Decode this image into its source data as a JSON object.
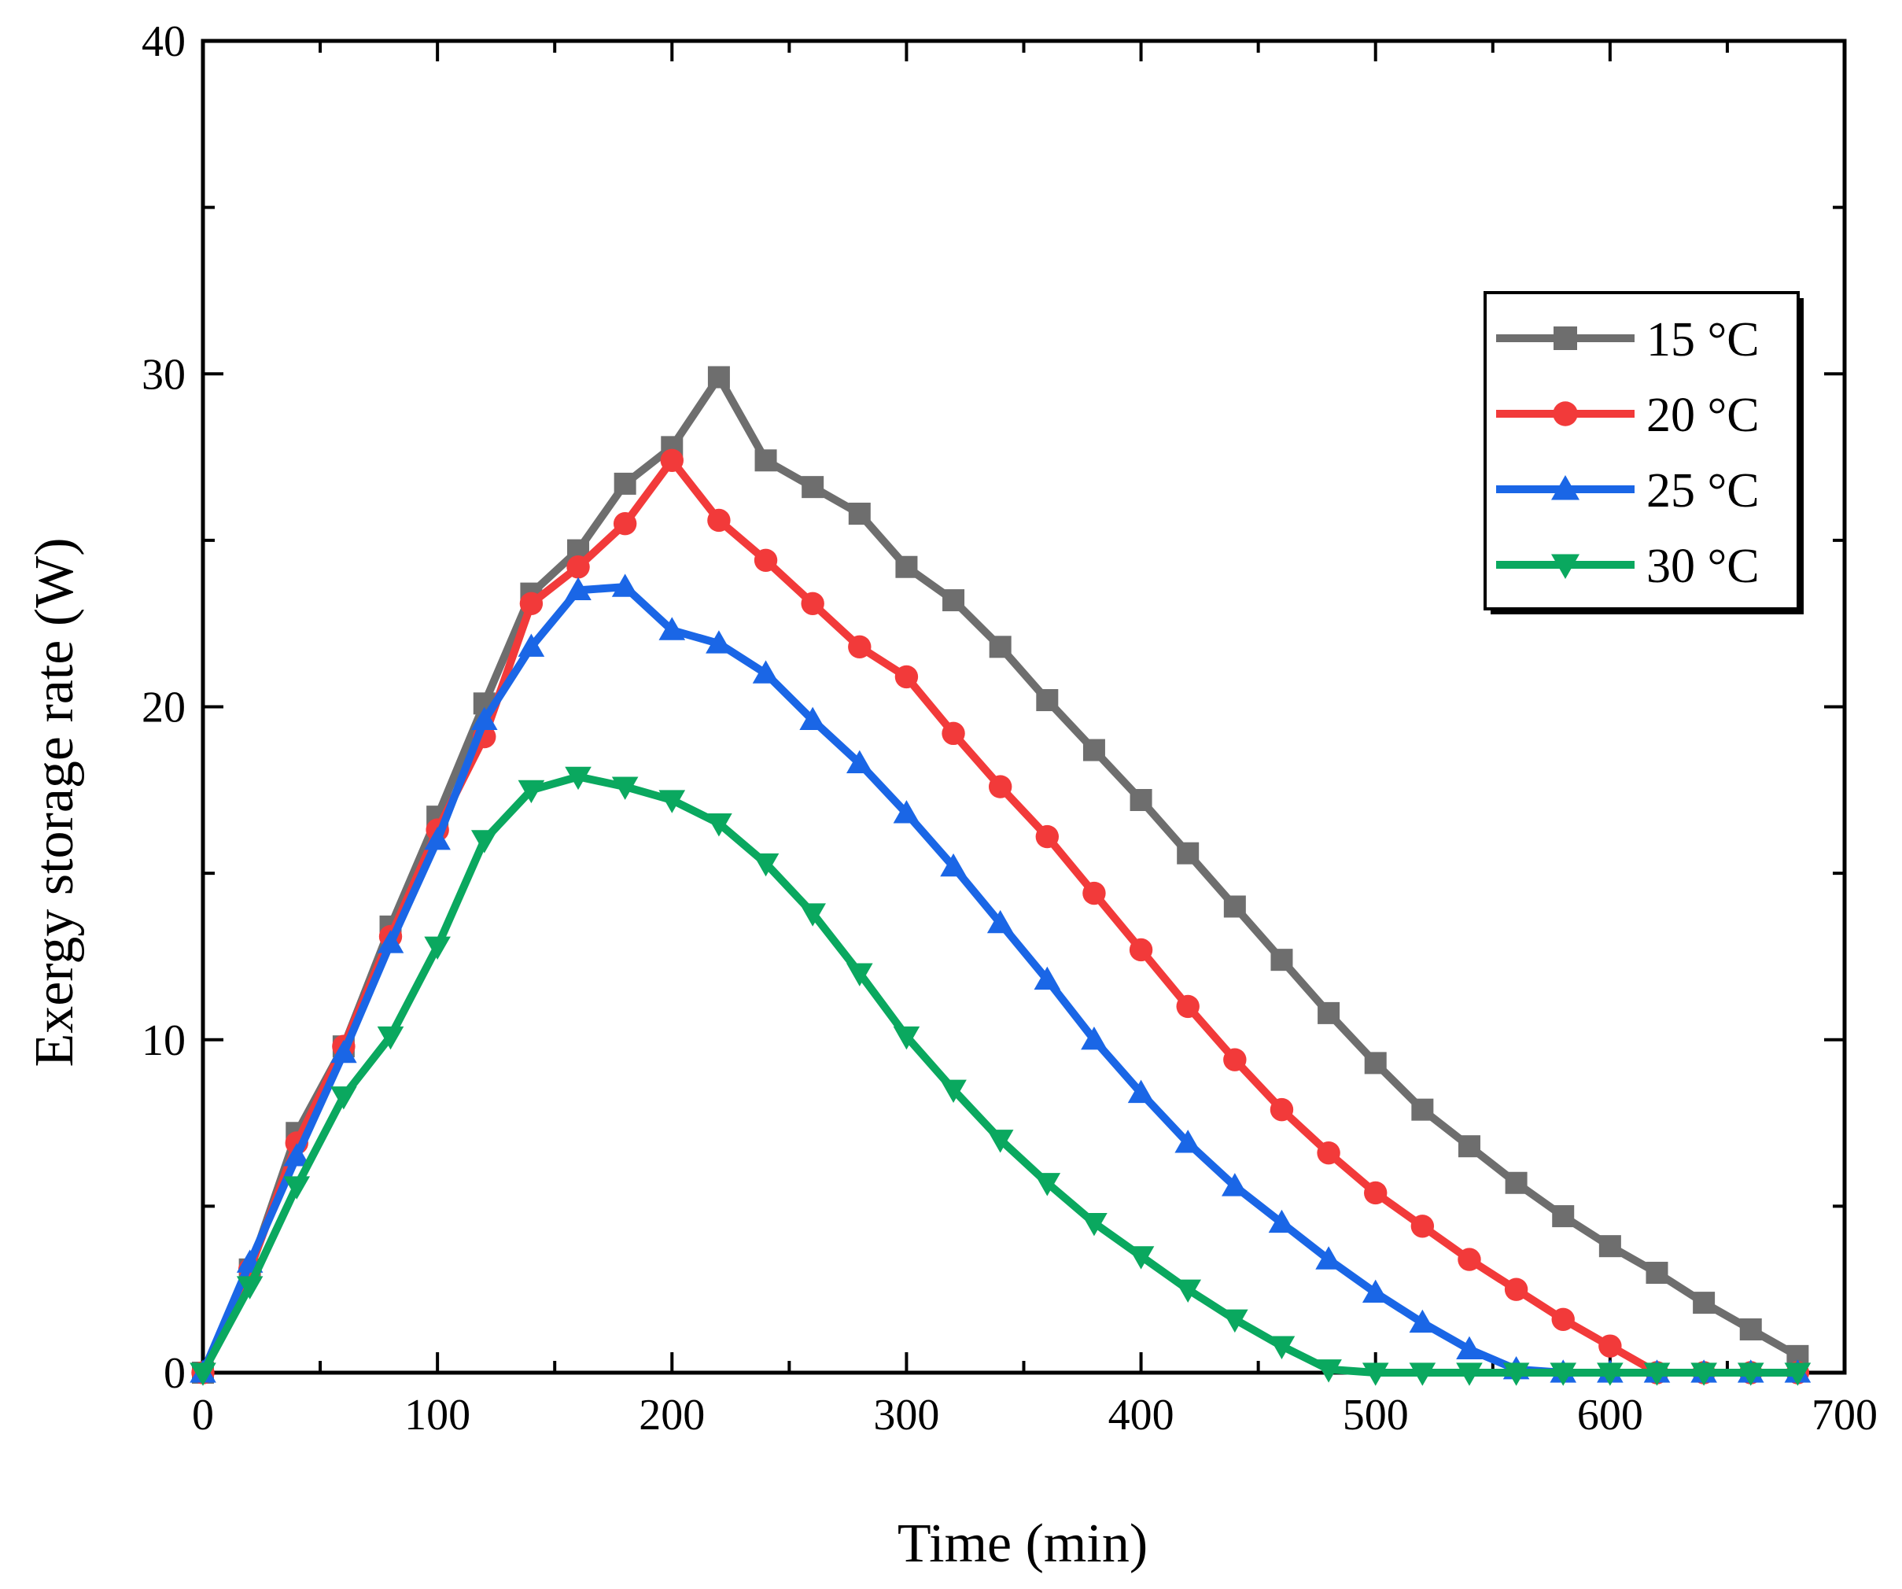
{
  "chart_data": {
    "type": "line",
    "title": "",
    "xlabel": "Time (min)",
    "ylabel": "Exergy storage rate (W)",
    "xlim": [
      0,
      700
    ],
    "ylim": [
      0,
      40
    ],
    "xticks": [
      0,
      100,
      200,
      300,
      400,
      500,
      600,
      700
    ],
    "yticks": [
      0,
      10,
      20,
      30,
      40
    ],
    "grid": false,
    "legend_position": "top-right",
    "x": [
      0,
      20,
      40,
      60,
      80,
      100,
      120,
      140,
      160,
      180,
      200,
      220,
      240,
      260,
      280,
      300,
      320,
      340,
      360,
      380,
      400,
      420,
      440,
      460,
      480,
      500,
      520,
      540,
      560,
      580,
      600,
      620,
      640,
      660,
      680
    ],
    "series": [
      {
        "name": "15 °C",
        "color": "#6e6e6e",
        "marker": "square",
        "values": [
          0,
          3.1,
          7.2,
          9.8,
          13.4,
          16.7,
          20.1,
          23.4,
          24.7,
          26.7,
          27.8,
          29.9,
          27.4,
          26.6,
          25.8,
          24.2,
          23.2,
          21.8,
          20.2,
          18.7,
          17.2,
          15.6,
          14.0,
          12.4,
          10.8,
          9.3,
          7.9,
          6.8,
          5.7,
          4.7,
          3.8,
          3.0,
          2.1,
          1.3,
          0.5
        ]
      },
      {
        "name": "20 °C",
        "color": "#f23a3a",
        "marker": "circle",
        "values": [
          0,
          3.1,
          6.9,
          9.8,
          13.1,
          16.3,
          19.1,
          23.1,
          24.2,
          25.5,
          27.4,
          25.6,
          24.4,
          23.1,
          21.8,
          20.9,
          19.2,
          17.6,
          16.1,
          14.4,
          12.7,
          11.0,
          9.4,
          7.9,
          6.6,
          5.4,
          4.4,
          3.4,
          2.5,
          1.6,
          0.8,
          0,
          0,
          0,
          0
        ]
      },
      {
        "name": "25 °C",
        "color": "#1a66e6",
        "marker": "triangle-up",
        "values": [
          0,
          3.3,
          6.5,
          9.6,
          12.9,
          16.0,
          19.6,
          21.8,
          23.5,
          23.6,
          22.3,
          21.9,
          21.0,
          19.6,
          18.3,
          16.8,
          15.2,
          13.5,
          11.8,
          10.0,
          8.4,
          6.9,
          5.6,
          4.5,
          3.4,
          2.4,
          1.5,
          0.7,
          0.1,
          0,
          0,
          0,
          0,
          0,
          0
        ]
      },
      {
        "name": "30 °C",
        "color": "#0aa85f",
        "marker": "triangle-down",
        "values": [
          0,
          2.6,
          5.6,
          8.3,
          10.1,
          12.8,
          16.0,
          17.5,
          17.9,
          17.6,
          17.2,
          16.5,
          15.3,
          13.8,
          12.0,
          10.1,
          8.5,
          7.0,
          5.7,
          4.5,
          3.5,
          2.5,
          1.6,
          0.8,
          0.1,
          0,
          0,
          0,
          0,
          0,
          0,
          0,
          0,
          0,
          0
        ]
      }
    ]
  }
}
